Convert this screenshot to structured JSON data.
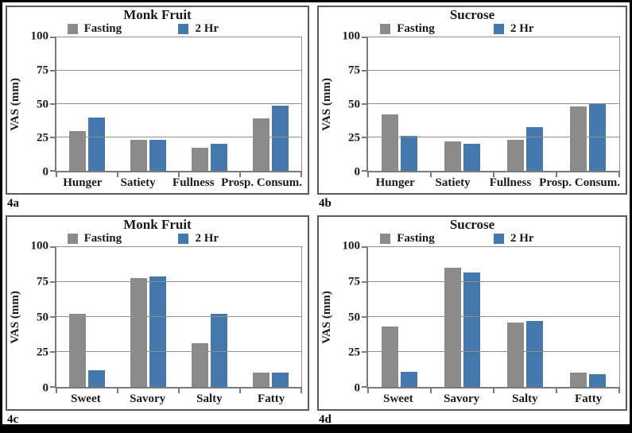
{
  "figure": {
    "series_colors": {
      "fasting": "#8b8b8b",
      "two_hr": "#4478ac"
    },
    "gridline_color": "#8f8f8f",
    "axis_color": "#7a7a7a",
    "frame_color": "#000000"
  },
  "chart_data": [
    {
      "type": "bar",
      "panel_label": "4a",
      "title": "Monk Fruit",
      "ylabel": "VAS (mm)",
      "ylim": [
        0,
        100
      ],
      "yticks": [
        0,
        25,
        50,
        75,
        100
      ],
      "grid": true,
      "legend_position": "top",
      "categories": [
        "Hunger",
        "Satiety",
        "Fullness",
        "Prosp. Consum."
      ],
      "series": [
        {
          "name": "Fasting",
          "color": "#8b8b8b",
          "values": [
            30,
            23,
            17,
            39
          ]
        },
        {
          "name": "2 Hr",
          "color": "#4478ac",
          "values": [
            40,
            23,
            20,
            49
          ]
        }
      ]
    },
    {
      "type": "bar",
      "panel_label": "4b",
      "title": "Sucrose",
      "ylabel": "VAS (mm)",
      "ylim": [
        0,
        100
      ],
      "yticks": [
        0,
        25,
        50,
        75,
        100
      ],
      "grid": true,
      "legend_position": "top",
      "categories": [
        "Hunger",
        "Satiety",
        "Fullness",
        "Prosp. Consum."
      ],
      "series": [
        {
          "name": "Fasting",
          "color": "#8b8b8b",
          "values": [
            42,
            22,
            23,
            48
          ]
        },
        {
          "name": "2 Hr",
          "color": "#4478ac",
          "values": [
            26,
            20,
            33,
            50
          ]
        }
      ]
    },
    {
      "type": "bar",
      "panel_label": "4c",
      "title": "Monk Fruit",
      "ylabel": "VAS (mm)",
      "ylim": [
        0,
        100
      ],
      "yticks": [
        0,
        25,
        50,
        75,
        100
      ],
      "grid": true,
      "legend_position": "top",
      "categories": [
        "Sweet",
        "Savory",
        "Salty",
        "Fatty"
      ],
      "series": [
        {
          "name": "Fasting",
          "color": "#8b8b8b",
          "values": [
            52,
            78,
            31,
            10
          ]
        },
        {
          "name": "2 Hr",
          "color": "#4478ac",
          "values": [
            12,
            79,
            52,
            10
          ]
        }
      ]
    },
    {
      "type": "bar",
      "panel_label": "4d",
      "title": "Sucrose",
      "ylabel": "VAS (mm)",
      "ylim": [
        0,
        100
      ],
      "yticks": [
        0,
        25,
        50,
        75,
        100
      ],
      "grid": true,
      "legend_position": "top",
      "categories": [
        "Sweet",
        "Savory",
        "Salty",
        "Fatty"
      ],
      "series": [
        {
          "name": "Fasting",
          "color": "#8b8b8b",
          "values": [
            43,
            85,
            46,
            10
          ]
        },
        {
          "name": "2 Hr",
          "color": "#4478ac",
          "values": [
            11,
            82,
            47,
            9
          ]
        }
      ]
    }
  ]
}
